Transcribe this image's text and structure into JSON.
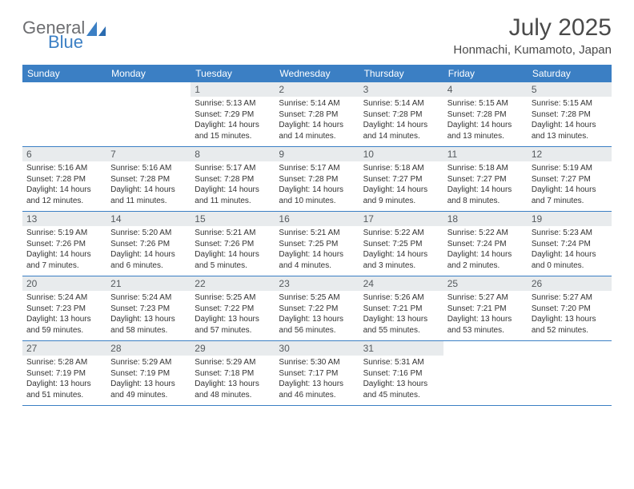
{
  "brand": {
    "line1": "General",
    "line2": "Blue"
  },
  "title": "July 2025",
  "location": "Honmachi, Kumamoto, Japan",
  "colors": {
    "accent": "#3b7fc4",
    "day_header_bg": "#e8ebed",
    "text": "#333333",
    "title_text": "#4a4a4a",
    "logo_gray": "#6d6e71",
    "background": "#ffffff"
  },
  "day_headers": [
    "Sunday",
    "Monday",
    "Tuesday",
    "Wednesday",
    "Thursday",
    "Friday",
    "Saturday"
  ],
  "weeks": [
    [
      {
        "empty": true
      },
      {
        "empty": true
      },
      {
        "n": "1",
        "sunrise": "Sunrise: 5:13 AM",
        "sunset": "Sunset: 7:29 PM",
        "daylight1": "Daylight: 14 hours",
        "daylight2": "and 15 minutes."
      },
      {
        "n": "2",
        "sunrise": "Sunrise: 5:14 AM",
        "sunset": "Sunset: 7:28 PM",
        "daylight1": "Daylight: 14 hours",
        "daylight2": "and 14 minutes."
      },
      {
        "n": "3",
        "sunrise": "Sunrise: 5:14 AM",
        "sunset": "Sunset: 7:28 PM",
        "daylight1": "Daylight: 14 hours",
        "daylight2": "and 14 minutes."
      },
      {
        "n": "4",
        "sunrise": "Sunrise: 5:15 AM",
        "sunset": "Sunset: 7:28 PM",
        "daylight1": "Daylight: 14 hours",
        "daylight2": "and 13 minutes."
      },
      {
        "n": "5",
        "sunrise": "Sunrise: 5:15 AM",
        "sunset": "Sunset: 7:28 PM",
        "daylight1": "Daylight: 14 hours",
        "daylight2": "and 13 minutes."
      }
    ],
    [
      {
        "n": "6",
        "sunrise": "Sunrise: 5:16 AM",
        "sunset": "Sunset: 7:28 PM",
        "daylight1": "Daylight: 14 hours",
        "daylight2": "and 12 minutes."
      },
      {
        "n": "7",
        "sunrise": "Sunrise: 5:16 AM",
        "sunset": "Sunset: 7:28 PM",
        "daylight1": "Daylight: 14 hours",
        "daylight2": "and 11 minutes."
      },
      {
        "n": "8",
        "sunrise": "Sunrise: 5:17 AM",
        "sunset": "Sunset: 7:28 PM",
        "daylight1": "Daylight: 14 hours",
        "daylight2": "and 11 minutes."
      },
      {
        "n": "9",
        "sunrise": "Sunrise: 5:17 AM",
        "sunset": "Sunset: 7:28 PM",
        "daylight1": "Daylight: 14 hours",
        "daylight2": "and 10 minutes."
      },
      {
        "n": "10",
        "sunrise": "Sunrise: 5:18 AM",
        "sunset": "Sunset: 7:27 PM",
        "daylight1": "Daylight: 14 hours",
        "daylight2": "and 9 minutes."
      },
      {
        "n": "11",
        "sunrise": "Sunrise: 5:18 AM",
        "sunset": "Sunset: 7:27 PM",
        "daylight1": "Daylight: 14 hours",
        "daylight2": "and 8 minutes."
      },
      {
        "n": "12",
        "sunrise": "Sunrise: 5:19 AM",
        "sunset": "Sunset: 7:27 PM",
        "daylight1": "Daylight: 14 hours",
        "daylight2": "and 7 minutes."
      }
    ],
    [
      {
        "n": "13",
        "sunrise": "Sunrise: 5:19 AM",
        "sunset": "Sunset: 7:26 PM",
        "daylight1": "Daylight: 14 hours",
        "daylight2": "and 7 minutes."
      },
      {
        "n": "14",
        "sunrise": "Sunrise: 5:20 AM",
        "sunset": "Sunset: 7:26 PM",
        "daylight1": "Daylight: 14 hours",
        "daylight2": "and 6 minutes."
      },
      {
        "n": "15",
        "sunrise": "Sunrise: 5:21 AM",
        "sunset": "Sunset: 7:26 PM",
        "daylight1": "Daylight: 14 hours",
        "daylight2": "and 5 minutes."
      },
      {
        "n": "16",
        "sunrise": "Sunrise: 5:21 AM",
        "sunset": "Sunset: 7:25 PM",
        "daylight1": "Daylight: 14 hours",
        "daylight2": "and 4 minutes."
      },
      {
        "n": "17",
        "sunrise": "Sunrise: 5:22 AM",
        "sunset": "Sunset: 7:25 PM",
        "daylight1": "Daylight: 14 hours",
        "daylight2": "and 3 minutes."
      },
      {
        "n": "18",
        "sunrise": "Sunrise: 5:22 AM",
        "sunset": "Sunset: 7:24 PM",
        "daylight1": "Daylight: 14 hours",
        "daylight2": "and 2 minutes."
      },
      {
        "n": "19",
        "sunrise": "Sunrise: 5:23 AM",
        "sunset": "Sunset: 7:24 PM",
        "daylight1": "Daylight: 14 hours",
        "daylight2": "and 0 minutes."
      }
    ],
    [
      {
        "n": "20",
        "sunrise": "Sunrise: 5:24 AM",
        "sunset": "Sunset: 7:23 PM",
        "daylight1": "Daylight: 13 hours",
        "daylight2": "and 59 minutes."
      },
      {
        "n": "21",
        "sunrise": "Sunrise: 5:24 AM",
        "sunset": "Sunset: 7:23 PM",
        "daylight1": "Daylight: 13 hours",
        "daylight2": "and 58 minutes."
      },
      {
        "n": "22",
        "sunrise": "Sunrise: 5:25 AM",
        "sunset": "Sunset: 7:22 PM",
        "daylight1": "Daylight: 13 hours",
        "daylight2": "and 57 minutes."
      },
      {
        "n": "23",
        "sunrise": "Sunrise: 5:25 AM",
        "sunset": "Sunset: 7:22 PM",
        "daylight1": "Daylight: 13 hours",
        "daylight2": "and 56 minutes."
      },
      {
        "n": "24",
        "sunrise": "Sunrise: 5:26 AM",
        "sunset": "Sunset: 7:21 PM",
        "daylight1": "Daylight: 13 hours",
        "daylight2": "and 55 minutes."
      },
      {
        "n": "25",
        "sunrise": "Sunrise: 5:27 AM",
        "sunset": "Sunset: 7:21 PM",
        "daylight1": "Daylight: 13 hours",
        "daylight2": "and 53 minutes."
      },
      {
        "n": "26",
        "sunrise": "Sunrise: 5:27 AM",
        "sunset": "Sunset: 7:20 PM",
        "daylight1": "Daylight: 13 hours",
        "daylight2": "and 52 minutes."
      }
    ],
    [
      {
        "n": "27",
        "sunrise": "Sunrise: 5:28 AM",
        "sunset": "Sunset: 7:19 PM",
        "daylight1": "Daylight: 13 hours",
        "daylight2": "and 51 minutes."
      },
      {
        "n": "28",
        "sunrise": "Sunrise: 5:29 AM",
        "sunset": "Sunset: 7:19 PM",
        "daylight1": "Daylight: 13 hours",
        "daylight2": "and 49 minutes."
      },
      {
        "n": "29",
        "sunrise": "Sunrise: 5:29 AM",
        "sunset": "Sunset: 7:18 PM",
        "daylight1": "Daylight: 13 hours",
        "daylight2": "and 48 minutes."
      },
      {
        "n": "30",
        "sunrise": "Sunrise: 5:30 AM",
        "sunset": "Sunset: 7:17 PM",
        "daylight1": "Daylight: 13 hours",
        "daylight2": "and 46 minutes."
      },
      {
        "n": "31",
        "sunrise": "Sunrise: 5:31 AM",
        "sunset": "Sunset: 7:16 PM",
        "daylight1": "Daylight: 13 hours",
        "daylight2": "and 45 minutes."
      },
      {
        "empty": true
      },
      {
        "empty": true
      }
    ]
  ]
}
